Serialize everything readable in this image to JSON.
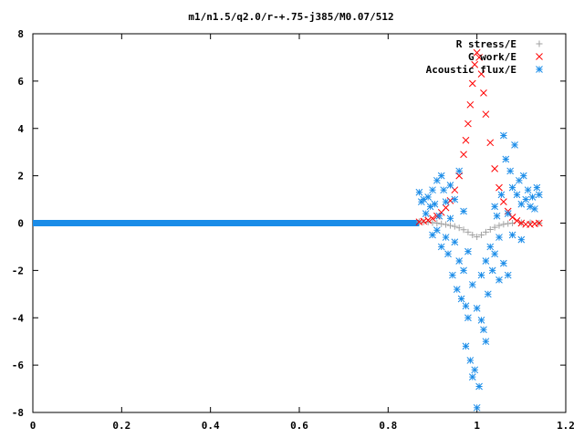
{
  "chart_data": {
    "type": "scatter",
    "title": "m1/n1.5/q2.0/r-+.75-j385/M0.07/512",
    "xlabel": "",
    "ylabel": "",
    "xlim": [
      0,
      1.2
    ],
    "ylim": [
      -8,
      8
    ],
    "x_ticks": [
      "0",
      "0.2",
      "0.4",
      "0.6",
      "0.8",
      "1",
      "1.2"
    ],
    "y_ticks": [
      "8",
      "6",
      "4",
      "2",
      "0",
      "-2",
      "-4",
      "-6",
      "-8"
    ],
    "grid": false,
    "legend_position": "top-right",
    "series": [
      {
        "name": "R stress/E",
        "marker": "plus",
        "color": "#a0a0a0",
        "points": [
          [
            0.87,
            0.06
          ],
          [
            0.88,
            0.05
          ],
          [
            0.89,
            0.04
          ],
          [
            0.9,
            0.02
          ],
          [
            0.91,
            0.0
          ],
          [
            0.92,
            -0.03
          ],
          [
            0.93,
            -0.06
          ],
          [
            0.94,
            -0.1
          ],
          [
            0.95,
            -0.14
          ],
          [
            0.96,
            -0.2
          ],
          [
            0.97,
            -0.28
          ],
          [
            0.98,
            -0.38
          ],
          [
            0.99,
            -0.5
          ],
          [
            1.0,
            -0.58
          ],
          [
            1.01,
            -0.5
          ],
          [
            1.02,
            -0.38
          ],
          [
            1.03,
            -0.27
          ],
          [
            1.04,
            -0.18
          ],
          [
            1.05,
            -0.1
          ],
          [
            1.06,
            -0.05
          ],
          [
            1.07,
            -0.02
          ],
          [
            1.08,
            0.0
          ],
          [
            1.1,
            0.02
          ],
          [
            1.12,
            0.02
          ],
          [
            1.14,
            0.0
          ]
        ]
      },
      {
        "name": "G work/E",
        "marker": "cross",
        "color": "#ff0000",
        "points": [
          [
            0.87,
            0.05
          ],
          [
            0.88,
            0.08
          ],
          [
            0.89,
            0.12
          ],
          [
            0.9,
            0.2
          ],
          [
            0.91,
            0.3
          ],
          [
            0.92,
            0.45
          ],
          [
            0.93,
            0.65
          ],
          [
            0.94,
            0.95
          ],
          [
            0.95,
            1.4
          ],
          [
            0.96,
            2.0
          ],
          [
            0.97,
            2.9
          ],
          [
            0.975,
            3.5
          ],
          [
            0.98,
            4.2
          ],
          [
            0.985,
            5.0
          ],
          [
            0.99,
            5.9
          ],
          [
            0.995,
            6.7
          ],
          [
            1.0,
            7.2
          ],
          [
            1.005,
            7.0
          ],
          [
            1.01,
            6.3
          ],
          [
            1.015,
            5.5
          ],
          [
            1.02,
            4.6
          ],
          [
            1.03,
            3.4
          ],
          [
            1.04,
            2.3
          ],
          [
            1.05,
            1.5
          ],
          [
            1.06,
            0.9
          ],
          [
            1.07,
            0.5
          ],
          [
            1.08,
            0.25
          ],
          [
            1.09,
            0.1
          ],
          [
            1.1,
            0.0
          ],
          [
            1.11,
            -0.05
          ],
          [
            1.12,
            -0.06
          ],
          [
            1.13,
            -0.03
          ],
          [
            1.14,
            0.0
          ]
        ]
      },
      {
        "name": "Acoustic flux/E",
        "marker": "star",
        "color": "#1a8ce8",
        "points": [
          [
            0.87,
            1.3
          ],
          [
            0.875,
            0.9
          ],
          [
            0.88,
            1.0
          ],
          [
            0.885,
            0.4
          ],
          [
            0.89,
            1.1
          ],
          [
            0.895,
            0.7
          ],
          [
            0.9,
            1.4
          ],
          [
            0.9,
            -0.5
          ],
          [
            0.905,
            0.8
          ],
          [
            0.91,
            1.8
          ],
          [
            0.91,
            -0.3
          ],
          [
            0.915,
            0.3
          ],
          [
            0.92,
            2.0
          ],
          [
            0.92,
            -1.0
          ],
          [
            0.925,
            1.4
          ],
          [
            0.93,
            -0.6
          ],
          [
            0.93,
            0.9
          ],
          [
            0.935,
            -1.3
          ],
          [
            0.94,
            1.6
          ],
          [
            0.94,
            0.2
          ],
          [
            0.945,
            -2.2
          ],
          [
            0.95,
            1.0
          ],
          [
            0.95,
            -0.8
          ],
          [
            0.955,
            -2.8
          ],
          [
            0.96,
            2.2
          ],
          [
            0.96,
            -1.6
          ],
          [
            0.965,
            -3.2
          ],
          [
            0.97,
            0.5
          ],
          [
            0.97,
            -2.0
          ],
          [
            0.975,
            -3.5
          ],
          [
            0.975,
            -5.2
          ],
          [
            0.98,
            -4.0
          ],
          [
            0.98,
            -1.2
          ],
          [
            0.985,
            -5.8
          ],
          [
            0.99,
            -6.5
          ],
          [
            0.99,
            -2.6
          ],
          [
            0.995,
            -6.2
          ],
          [
            1.0,
            -7.8
          ],
          [
            1.0,
            -3.6
          ],
          [
            1.005,
            -6.9
          ],
          [
            1.01,
            -4.1
          ],
          [
            1.01,
            -2.2
          ],
          [
            1.015,
            -4.5
          ],
          [
            1.02,
            -5.0
          ],
          [
            1.02,
            -1.6
          ],
          [
            1.025,
            -3.0
          ],
          [
            1.03,
            -1.0
          ],
          [
            1.035,
            -2.0
          ],
          [
            1.04,
            0.7
          ],
          [
            1.04,
            -1.3
          ],
          [
            1.045,
            0.3
          ],
          [
            1.05,
            -0.6
          ],
          [
            1.05,
            -2.4
          ],
          [
            1.055,
            1.2
          ],
          [
            1.06,
            3.7
          ],
          [
            1.06,
            -1.7
          ],
          [
            1.065,
            2.7
          ],
          [
            1.07,
            0.4
          ],
          [
            1.07,
            -2.2
          ],
          [
            1.075,
            2.2
          ],
          [
            1.08,
            1.5
          ],
          [
            1.08,
            -0.5
          ],
          [
            1.085,
            3.3
          ],
          [
            1.09,
            1.2
          ],
          [
            1.095,
            1.8
          ],
          [
            1.1,
            0.8
          ],
          [
            1.1,
            -0.7
          ],
          [
            1.105,
            2.0
          ],
          [
            1.11,
            1.0
          ],
          [
            1.115,
            1.4
          ],
          [
            1.12,
            0.7
          ],
          [
            1.125,
            1.1
          ],
          [
            1.13,
            0.6
          ],
          [
            1.135,
            1.5
          ],
          [
            1.14,
            1.2
          ]
        ]
      }
    ]
  }
}
